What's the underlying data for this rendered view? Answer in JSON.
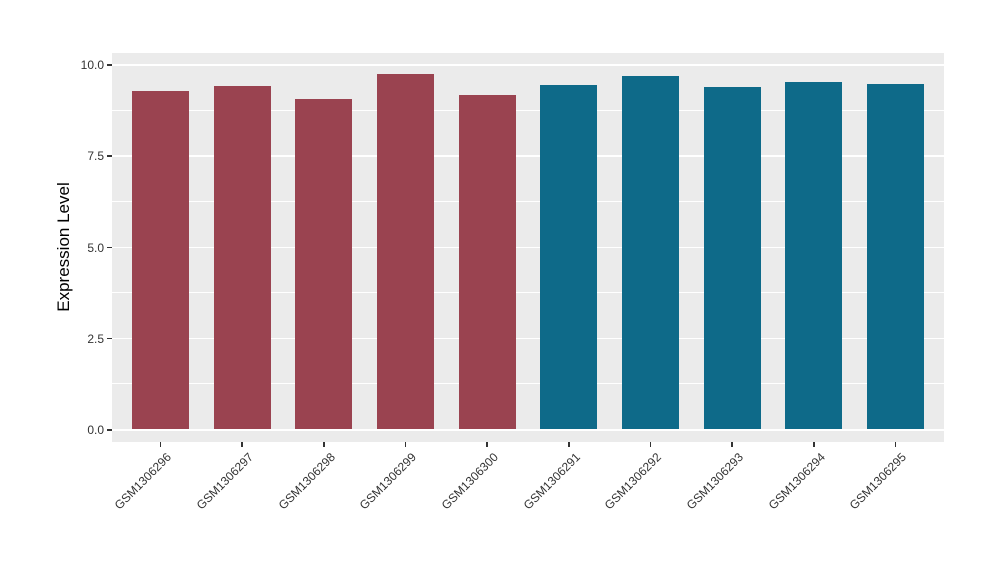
{
  "chart_data": {
    "type": "bar",
    "title": "",
    "xlabel": "",
    "ylabel": "Expression Level",
    "categories": [
      "GSM1306296",
      "GSM1306297",
      "GSM1306298",
      "GSM1306299",
      "GSM1306300",
      "GSM1306291",
      "GSM1306292",
      "GSM1306293",
      "GSM1306294",
      "GSM1306295"
    ],
    "values": [
      9.27,
      9.4,
      9.04,
      9.73,
      9.16,
      9.43,
      9.67,
      9.37,
      9.52,
      9.46
    ],
    "bar_colors": [
      "#9A4350",
      "#9A4350",
      "#9A4350",
      "#9A4350",
      "#9A4350",
      "#0E6A89",
      "#0E6A89",
      "#0E6A89",
      "#0E6A89",
      "#0E6A89"
    ],
    "group_colors": {
      "left_group": "#9A4350",
      "right_group": "#0E6A89"
    },
    "ylim": [
      0,
      10.35
    ],
    "yticks": {
      "values": [
        0,
        2.5,
        5,
        7.5,
        10
      ],
      "labels": [
        "0.0",
        "2.5",
        "5.0",
        "7.5",
        "10.0"
      ]
    },
    "yminor": [
      1.25,
      3.75,
      6.25,
      8.75
    ],
    "grid": "on",
    "legend": "none",
    "colors": {
      "panel_bg": "#EBEBEB",
      "grid_major": "#FFFFFF",
      "grid_minor": "#FFFFFF",
      "axis_text": "#333333",
      "axis_title": "#000000",
      "tick_mark": "#333333",
      "figure_bg": "#FFFFFF"
    }
  }
}
